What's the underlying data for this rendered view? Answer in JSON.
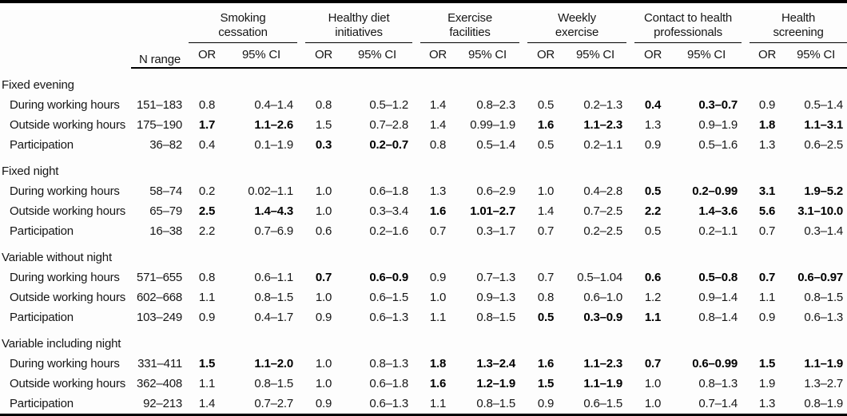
{
  "table": {
    "n_range_header": "N range",
    "or_header": "OR",
    "ci_header": "95% CI",
    "groups": [
      {
        "label": "Smoking\ncessation"
      },
      {
        "label": "Healthy diet\ninitiatives"
      },
      {
        "label": "Exercise\nfacilities"
      },
      {
        "label": "Weekly\nexercise"
      },
      {
        "label": "Contact to health\nprofessionals"
      },
      {
        "label": "Health\nscreening"
      }
    ],
    "sections": [
      {
        "label": "Fixed evening",
        "rows": [
          {
            "label": "During working hours",
            "n_range": "151–183",
            "cells": [
              {
                "or": "0.8",
                "ci": "0.4–1.4",
                "bold": "none"
              },
              {
                "or": "0.8",
                "ci": "0.5–1.2",
                "bold": "none"
              },
              {
                "or": "1.4",
                "ci": "0.8–2.3",
                "bold": "none"
              },
              {
                "or": "0.5",
                "ci": "0.2–1.3",
                "bold": "none"
              },
              {
                "or": "0.4",
                "ci": "0.3–0.7",
                "bold": "both"
              },
              {
                "or": "0.9",
                "ci": "0.5–1.4",
                "bold": "none"
              }
            ]
          },
          {
            "label": "Outside working hours",
            "n_range": "175–190",
            "cells": [
              {
                "or": "1.7",
                "ci": "1.1–2.6",
                "bold": "both"
              },
              {
                "or": "1.5",
                "ci": "0.7–2.8",
                "bold": "none"
              },
              {
                "or": "1.4",
                "ci": "0.99–1.9",
                "bold": "none"
              },
              {
                "or": "1.6",
                "ci": "1.1–2.3",
                "bold": "both"
              },
              {
                "or": "1.3",
                "ci": "0.9–1.9",
                "bold": "none"
              },
              {
                "or": "1.8",
                "ci": "1.1–3.1",
                "bold": "both"
              }
            ]
          },
          {
            "label": "Participation",
            "n_range": "36–82",
            "cells": [
              {
                "or": "0.4",
                "ci": "0.1–1.9",
                "bold": "none"
              },
              {
                "or": "0.3",
                "ci": "0.2–0.7",
                "bold": "both"
              },
              {
                "or": "0.8",
                "ci": "0.5–1.4",
                "bold": "none"
              },
              {
                "or": "0.5",
                "ci": "0.2–1.1",
                "bold": "none"
              },
              {
                "or": "0.9",
                "ci": "0.5–1.6",
                "bold": "none"
              },
              {
                "or": "1.3",
                "ci": "0.6–2.5",
                "bold": "none"
              }
            ]
          }
        ]
      },
      {
        "label": "Fixed night",
        "rows": [
          {
            "label": "During working hours",
            "n_range": "58–74",
            "cells": [
              {
                "or": "0.2",
                "ci": "0.02–1.1",
                "bold": "none"
              },
              {
                "or": "1.0",
                "ci": "0.6–1.8",
                "bold": "none"
              },
              {
                "or": "1.3",
                "ci": "0.6–2.9",
                "bold": "none"
              },
              {
                "or": "1.0",
                "ci": "0.4–2.8",
                "bold": "none"
              },
              {
                "or": "0.5",
                "ci": "0.2–0.99",
                "bold": "both"
              },
              {
                "or": "3.1",
                "ci": "1.9–5.2",
                "bold": "both"
              }
            ]
          },
          {
            "label": "Outside working hours",
            "n_range": "65–79",
            "cells": [
              {
                "or": "2.5",
                "ci": "1.4–4.3",
                "bold": "both"
              },
              {
                "or": "1.0",
                "ci": "0.3–3.4",
                "bold": "none"
              },
              {
                "or": "1.6",
                "ci": "1.01–2.7",
                "bold": "both"
              },
              {
                "or": "1.4",
                "ci": "0.7–2.5",
                "bold": "none"
              },
              {
                "or": "2.2",
                "ci": "1.4–3.6",
                "bold": "both"
              },
              {
                "or": "5.6",
                "ci": "3.1–10.0",
                "bold": "both"
              }
            ]
          },
          {
            "label": "Participation",
            "n_range": "16–38",
            "cells": [
              {
                "or": "2.2",
                "ci": "0.7–6.9",
                "bold": "none"
              },
              {
                "or": "0.6",
                "ci": "0.2–1.6",
                "bold": "none"
              },
              {
                "or": "0.7",
                "ci": "0.3–1.7",
                "bold": "none"
              },
              {
                "or": "0.7",
                "ci": "0.2–2.5",
                "bold": "none"
              },
              {
                "or": "0.5",
                "ci": "0.2–1.1",
                "bold": "none"
              },
              {
                "or": "0.7",
                "ci": "0.3–1.4",
                "bold": "none"
              }
            ]
          }
        ]
      },
      {
        "label": "Variable without night",
        "rows": [
          {
            "label": "During working hours",
            "n_range": "571–655",
            "cells": [
              {
                "or": "0.8",
                "ci": "0.6–1.1",
                "bold": "none"
              },
              {
                "or": "0.7",
                "ci": "0.6–0.9",
                "bold": "both"
              },
              {
                "or": "0.9",
                "ci": "0.7–1.3",
                "bold": "none"
              },
              {
                "or": "0.7",
                "ci": "0.5–1.04",
                "bold": "none"
              },
              {
                "or": "0.6",
                "ci": "0.5–0.8",
                "bold": "both"
              },
              {
                "or": "0.7",
                "ci": "0.6–0.97",
                "bold": "both"
              }
            ]
          },
          {
            "label": "Outside working hours",
            "n_range": "602–668",
            "cells": [
              {
                "or": "1.1",
                "ci": "0.8–1.5",
                "bold": "none"
              },
              {
                "or": "1.0",
                "ci": "0.6–1.5",
                "bold": "none"
              },
              {
                "or": "1.0",
                "ci": "0.9–1.3",
                "bold": "none"
              },
              {
                "or": "0.8",
                "ci": "0.6–1.0",
                "bold": "none"
              },
              {
                "or": "1.2",
                "ci": "0.9–1.4",
                "bold": "none"
              },
              {
                "or": "1.1",
                "ci": "0.8–1.5",
                "bold": "none"
              }
            ]
          },
          {
            "label": "Participation",
            "n_range": "103–249",
            "cells": [
              {
                "or": "0.9",
                "ci": "0.4–1.7",
                "bold": "none"
              },
              {
                "or": "0.9",
                "ci": "0.6–1.3",
                "bold": "none"
              },
              {
                "or": "1.1",
                "ci": "0.8–1.5",
                "bold": "none"
              },
              {
                "or": "0.5",
                "ci": "0.3–0.9",
                "bold": "both"
              },
              {
                "or": "1.1",
                "ci": "0.8–1.4",
                "bold": "or"
              },
              {
                "or": "0.9",
                "ci": "0.6–1.3",
                "bold": "none"
              }
            ]
          }
        ]
      },
      {
        "label": "Variable including night",
        "rows": [
          {
            "label": "During working hours",
            "n_range": "331–411",
            "cells": [
              {
                "or": "1.5",
                "ci": "1.1–2.0",
                "bold": "both"
              },
              {
                "or": "1.0",
                "ci": "0.8–1.3",
                "bold": "none"
              },
              {
                "or": "1.8",
                "ci": "1.3–2.4",
                "bold": "both"
              },
              {
                "or": "1.6",
                "ci": "1.1–2.3",
                "bold": "both"
              },
              {
                "or": "0.7",
                "ci": "0.6–0.99",
                "bold": "both"
              },
              {
                "or": "1.5",
                "ci": "1.1–1.9",
                "bold": "both"
              }
            ]
          },
          {
            "label": "Outside working hours",
            "n_range": "362–408",
            "cells": [
              {
                "or": "1.1",
                "ci": "0.8–1.5",
                "bold": "none"
              },
              {
                "or": "1.0",
                "ci": "0.6–1.8",
                "bold": "none"
              },
              {
                "or": "1.6",
                "ci": "1.2–1.9",
                "bold": "both"
              },
              {
                "or": "1.5",
                "ci": "1.1–1.9",
                "bold": "both"
              },
              {
                "or": "1.0",
                "ci": "0.8–1.3",
                "bold": "none"
              },
              {
                "or": "1.9",
                "ci": "1.3–2.7",
                "bold": "none"
              }
            ]
          },
          {
            "label": "Participation",
            "n_range": "92–213",
            "cells": [
              {
                "or": "1.4",
                "ci": "0.7–2.7",
                "bold": "none"
              },
              {
                "or": "0.9",
                "ci": "0.6–1.3",
                "bold": "none"
              },
              {
                "or": "1.1",
                "ci": "0.8–1.5",
                "bold": "none"
              },
              {
                "or": "0.9",
                "ci": "0.6–1.5",
                "bold": "none"
              },
              {
                "or": "1.0",
                "ci": "0.7–1.4",
                "bold": "none"
              },
              {
                "or": "1.3",
                "ci": "0.8–1.9",
                "bold": "none"
              }
            ]
          }
        ]
      }
    ]
  },
  "colors": {
    "text": "#161616",
    "rule": "#000000",
    "background": "#fdfdfd"
  }
}
